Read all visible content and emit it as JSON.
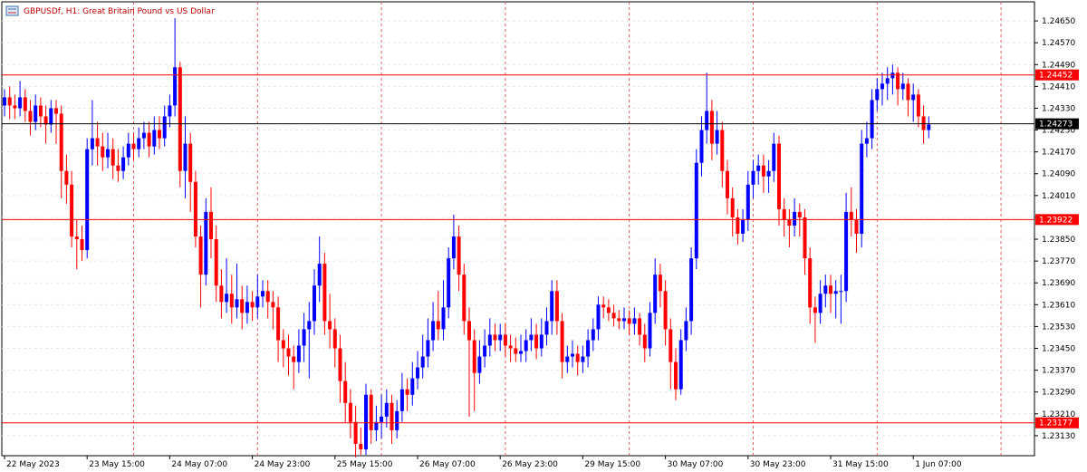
{
  "chart_data": {
    "type": "candlestick",
    "title": "GBPUSDf, H1:  Great Britain Pound vs US Dollar",
    "up_color": "#0000ff",
    "down_color": "#ff0000",
    "grid": true,
    "ylim": [
      1.2305,
      1.2471
    ],
    "yticks": [
      {
        "value": 1.2465,
        "label": "1.24650"
      },
      {
        "value": 1.2457,
        "label": "1.24570"
      },
      {
        "value": 1.2449,
        "label": "1.24490"
      },
      {
        "value": 1.2441,
        "label": "1.24410"
      },
      {
        "value": 1.2433,
        "label": "1.24330"
      },
      {
        "value": 1.2425,
        "label": "1.24250"
      },
      {
        "value": 1.2417,
        "label": "1.24170"
      },
      {
        "value": 1.2409,
        "label": "1.24090"
      },
      {
        "value": 1.2401,
        "label": "1.24010"
      },
      {
        "value": 1.2393,
        "label": "1.23930"
      },
      {
        "value": 1.2385,
        "label": "1.23850"
      },
      {
        "value": 1.2377,
        "label": "1.23770"
      },
      {
        "value": 1.2369,
        "label": "1.23690"
      },
      {
        "value": 1.2361,
        "label": "1.23610"
      },
      {
        "value": 1.2353,
        "label": "1.23530"
      },
      {
        "value": 1.2345,
        "label": "1.23450"
      },
      {
        "value": 1.2337,
        "label": "1.23370"
      },
      {
        "value": 1.2329,
        "label": "1.23290"
      },
      {
        "value": 1.2321,
        "label": "1.23210"
      },
      {
        "value": 1.2313,
        "label": "1.23130"
      }
    ],
    "levels": [
      {
        "value": 1.24452,
        "color": "#ff0000"
      },
      {
        "value": 1.24273,
        "color": "#000000"
      },
      {
        "value": 1.23922,
        "color": "#ff0000"
      },
      {
        "value": 1.23177,
        "color": "#ff0000"
      }
    ],
    "categories": [
      "22 May 2023",
      null,
      null,
      null,
      null,
      null,
      null,
      null,
      null,
      null,
      null,
      null,
      null,
      null,
      null,
      null,
      "23 May 15:00",
      null,
      null,
      null,
      null,
      null,
      null,
      null,
      null,
      null,
      null,
      null,
      null,
      null,
      null,
      null,
      "24 May 07:00",
      null,
      null,
      null,
      null,
      null,
      null,
      null,
      null,
      null,
      null,
      null,
      null,
      null,
      null,
      null,
      "24 May 23:00",
      null,
      null,
      null,
      null,
      null,
      null,
      null,
      null,
      null,
      null,
      null,
      null,
      null,
      null,
      null,
      "25 May 15:00",
      null,
      null,
      null,
      null,
      null,
      null,
      null,
      null,
      null,
      null,
      null,
      null,
      null,
      null,
      null,
      "26 May 07:00",
      null,
      null,
      null,
      null,
      null,
      null,
      null,
      null,
      null,
      null,
      null,
      null,
      null,
      null,
      null,
      "26 May 23:00",
      null,
      null,
      null,
      null,
      null,
      null,
      null,
      null,
      null,
      null,
      null,
      null,
      null,
      null,
      null,
      "29 May 15:00",
      null,
      null,
      null,
      null,
      null,
      null,
      null,
      null,
      null,
      null,
      null,
      null,
      null,
      null,
      null,
      "30 May 07:00",
      null,
      null,
      null,
      null,
      null,
      null,
      null,
      null,
      null,
      null,
      null,
      null,
      null,
      null,
      null,
      "30 May 23:00",
      null,
      null,
      null,
      null,
      null,
      null,
      null,
      null,
      null,
      null,
      null,
      null,
      null,
      null,
      null,
      "31 May 15:00",
      null,
      null,
      null,
      null,
      null,
      null,
      null,
      null,
      null,
      null,
      null,
      null,
      null,
      null,
      null,
      "1 Jun 07:00",
      null,
      null,
      null
    ],
    "ohlc": [
      [
        1.2434,
        1.244,
        1.243,
        1.2437
      ],
      [
        1.2437,
        1.2441,
        1.2429,
        1.2434
      ],
      [
        1.2434,
        1.2438,
        1.2429,
        1.2433
      ],
      [
        1.2433,
        1.2443,
        1.243,
        1.2437
      ],
      [
        1.2437,
        1.244,
        1.2428,
        1.2432
      ],
      [
        1.2432,
        1.2436,
        1.2423,
        1.2428
      ],
      [
        1.2428,
        1.2438,
        1.2425,
        1.2434
      ],
      [
        1.2434,
        1.2437,
        1.2426,
        1.243
      ],
      [
        1.243,
        1.2434,
        1.242,
        1.2427
      ],
      [
        1.2427,
        1.2436,
        1.2424,
        1.2433
      ],
      [
        1.2433,
        1.2436,
        1.242,
        1.2431
      ],
      [
        1.2431,
        1.2434,
        1.24,
        1.241
      ],
      [
        1.241,
        1.2416,
        1.2398,
        1.2405
      ],
      [
        1.2405,
        1.241,
        1.2382,
        1.2386
      ],
      [
        1.2386,
        1.2392,
        1.2374,
        1.2385
      ],
      [
        1.2385,
        1.239,
        1.2377,
        1.2381
      ],
      [
        1.2381,
        1.2422,
        1.2378,
        1.2418
      ],
      [
        1.2418,
        1.2436,
        1.2412,
        1.2422
      ],
      [
        1.2422,
        1.2428,
        1.2412,
        1.2419
      ],
      [
        1.2419,
        1.2424,
        1.241,
        1.2415
      ],
      [
        1.2415,
        1.2424,
        1.2411,
        1.2418
      ],
      [
        1.2418,
        1.2422,
        1.2407,
        1.2412
      ],
      [
        1.2412,
        1.2418,
        1.2406,
        1.241
      ],
      [
        1.241,
        1.2419,
        1.2407,
        1.2415
      ],
      [
        1.2415,
        1.2424,
        1.2412,
        1.242
      ],
      [
        1.242,
        1.2424,
        1.2414,
        1.2418
      ],
      [
        1.2418,
        1.2426,
        1.2415,
        1.2422
      ],
      [
        1.2422,
        1.2428,
        1.2418,
        1.2424
      ],
      [
        1.2424,
        1.2428,
        1.2415,
        1.2419
      ],
      [
        1.2419,
        1.243,
        1.2416,
        1.2425
      ],
      [
        1.2425,
        1.243,
        1.2418,
        1.2422
      ],
      [
        1.2422,
        1.2434,
        1.2419,
        1.243
      ],
      [
        1.243,
        1.2438,
        1.2426,
        1.2434
      ],
      [
        1.2434,
        1.2466,
        1.243,
        1.2448
      ],
      [
        1.2448,
        1.245,
        1.2404,
        1.241
      ],
      [
        1.241,
        1.243,
        1.24,
        1.242
      ],
      [
        1.242,
        1.2424,
        1.2395,
        1.2406
      ],
      [
        1.2406,
        1.241,
        1.2382,
        1.2386
      ],
      [
        1.2386,
        1.239,
        1.236,
        1.2372
      ],
      [
        1.2372,
        1.24,
        1.2368,
        1.2395
      ],
      [
        1.2395,
        1.2404,
        1.2378,
        1.2385
      ],
      [
        1.2385,
        1.239,
        1.2362,
        1.2368
      ],
      [
        1.2368,
        1.2374,
        1.2356,
        1.2362
      ],
      [
        1.2362,
        1.2378,
        1.2358,
        1.2365
      ],
      [
        1.2365,
        1.2372,
        1.2354,
        1.236
      ],
      [
        1.236,
        1.2376,
        1.2356,
        1.2363
      ],
      [
        1.2363,
        1.2368,
        1.2352,
        1.2358
      ],
      [
        1.2358,
        1.2368,
        1.2354,
        1.2362
      ],
      [
        1.2362,
        1.2366,
        1.2355,
        1.236
      ],
      [
        1.236,
        1.2372,
        1.2356,
        1.2364
      ],
      [
        1.2364,
        1.237,
        1.236,
        1.2366
      ],
      [
        1.2366,
        1.237,
        1.2356,
        1.2362
      ],
      [
        1.2362,
        1.2366,
        1.2352,
        1.236
      ],
      [
        1.236,
        1.2364,
        1.234,
        1.2348
      ],
      [
        1.2348,
        1.2352,
        1.2338,
        1.2345
      ],
      [
        1.2345,
        1.235,
        1.2335,
        1.2342
      ],
      [
        1.2342,
        1.2346,
        1.233,
        1.234
      ],
      [
        1.234,
        1.2352,
        1.2336,
        1.2346
      ],
      [
        1.2346,
        1.2358,
        1.234,
        1.2352
      ],
      [
        1.2352,
        1.2362,
        1.2334,
        1.2355
      ],
      [
        1.2355,
        1.2374,
        1.235,
        1.2368
      ],
      [
        1.2368,
        1.2386,
        1.2362,
        1.2376
      ],
      [
        1.2376,
        1.238,
        1.235,
        1.2355
      ],
      [
        1.2355,
        1.2365,
        1.2345,
        1.2352
      ],
      [
        1.2352,
        1.2356,
        1.2338,
        1.2345
      ],
      [
        1.2345,
        1.235,
        1.2325,
        1.2333
      ],
      [
        1.2333,
        1.234,
        1.2318,
        1.2325
      ],
      [
        1.2325,
        1.233,
        1.2312,
        1.2318
      ],
      [
        1.2318,
        1.2324,
        1.2305,
        1.231
      ],
      [
        1.231,
        1.2316,
        1.2306,
        1.2308
      ],
      [
        1.2308,
        1.2332,
        1.2306,
        1.2328
      ],
      [
        1.2328,
        1.233,
        1.231,
        1.2315
      ],
      [
        1.2315,
        1.2324,
        1.2311,
        1.2318
      ],
      [
        1.2318,
        1.2328,
        1.2312,
        1.232
      ],
      [
        1.232,
        1.233,
        1.2316,
        1.2325
      ],
      [
        1.2325,
        1.2328,
        1.231,
        1.2315
      ],
      [
        1.2315,
        1.2326,
        1.2312,
        1.2322
      ],
      [
        1.2322,
        1.2336,
        1.2318,
        1.233
      ],
      [
        1.233,
        1.2334,
        1.2322,
        1.2328
      ],
      [
        1.2328,
        1.234,
        1.2324,
        1.2334
      ],
      [
        1.2334,
        1.2344,
        1.233,
        1.2338
      ],
      [
        1.2338,
        1.235,
        1.2334,
        1.2342
      ],
      [
        1.2342,
        1.2356,
        1.2338,
        1.2348
      ],
      [
        1.2348,
        1.2362,
        1.2344,
        1.2355
      ],
      [
        1.2355,
        1.2366,
        1.2348,
        1.2352
      ],
      [
        1.2352,
        1.237,
        1.2348,
        1.236
      ],
      [
        1.236,
        1.2382,
        1.2356,
        1.2378
      ],
      [
        1.2378,
        1.2394,
        1.2374,
        1.2386
      ],
      [
        1.2386,
        1.239,
        1.2366,
        1.2372
      ],
      [
        1.2372,
        1.2376,
        1.235,
        1.2355
      ],
      [
        1.2355,
        1.236,
        1.232,
        1.2348
      ],
      [
        1.2348,
        1.2352,
        1.2322,
        1.2336
      ],
      [
        1.2336,
        1.2348,
        1.2332,
        1.2342
      ],
      [
        1.2342,
        1.2352,
        1.2338,
        1.2346
      ],
      [
        1.2346,
        1.2356,
        1.2342,
        1.235
      ],
      [
        1.235,
        1.2354,
        1.2344,
        1.2348
      ],
      [
        1.2348,
        1.2354,
        1.2344,
        1.235
      ],
      [
        1.235,
        1.2354,
        1.2342,
        1.2346
      ],
      [
        1.2346,
        1.235,
        1.234,
        1.2345
      ],
      [
        1.2345,
        1.2349,
        1.234,
        1.2343
      ],
      [
        1.2343,
        1.235,
        1.234,
        1.2344
      ],
      [
        1.2344,
        1.2352,
        1.234,
        1.2348
      ],
      [
        1.2348,
        1.2356,
        1.2344,
        1.235
      ],
      [
        1.235,
        1.2354,
        1.2341,
        1.2345
      ],
      [
        1.2345,
        1.2356,
        1.2342,
        1.235
      ],
      [
        1.235,
        1.236,
        1.2346,
        1.2355
      ],
      [
        1.2355,
        1.237,
        1.235,
        1.2366
      ],
      [
        1.2366,
        1.237,
        1.235,
        1.2355
      ],
      [
        1.2355,
        1.2358,
        1.2334,
        1.234
      ],
      [
        1.234,
        1.2346,
        1.2336,
        1.2342
      ],
      [
        1.2342,
        1.2348,
        1.2338,
        1.2343
      ],
      [
        1.2343,
        1.2346,
        1.2335,
        1.234
      ],
      [
        1.234,
        1.2346,
        1.2336,
        1.2342
      ],
      [
        1.2342,
        1.2352,
        1.2338,
        1.2348
      ],
      [
        1.2348,
        1.2356,
        1.2344,
        1.2352
      ],
      [
        1.2352,
        1.2364,
        1.2348,
        1.2361
      ],
      [
        1.2361,
        1.2364,
        1.2356,
        1.236
      ],
      [
        1.236,
        1.2363,
        1.2355,
        1.2358
      ],
      [
        1.2358,
        1.2361,
        1.2353,
        1.2356
      ],
      [
        1.2356,
        1.2359,
        1.2352,
        1.2355
      ],
      [
        1.2355,
        1.236,
        1.2352,
        1.2356
      ],
      [
        1.2356,
        1.2359,
        1.235,
        1.2354
      ],
      [
        1.2354,
        1.236,
        1.235,
        1.2356
      ],
      [
        1.2356,
        1.2358,
        1.2346,
        1.235
      ],
      [
        1.235,
        1.2354,
        1.234,
        1.2345
      ],
      [
        1.2345,
        1.2362,
        1.2342,
        1.2358
      ],
      [
        1.2358,
        1.2378,
        1.2354,
        1.2372
      ],
      [
        1.2372,
        1.2376,
        1.236,
        1.2366
      ],
      [
        1.2366,
        1.237,
        1.2346,
        1.2352
      ],
      [
        1.2352,
        1.2356,
        1.233,
        1.234
      ],
      [
        1.234,
        1.2345,
        1.2326,
        1.233
      ],
      [
        1.233,
        1.2352,
        1.2328,
        1.2348
      ],
      [
        1.2348,
        1.236,
        1.2344,
        1.2355
      ],
      [
        1.2355,
        1.2382,
        1.235,
        1.2378
      ],
      [
        1.2378,
        1.2418,
        1.2374,
        1.2413
      ],
      [
        1.2413,
        1.243,
        1.2408,
        1.2425
      ],
      [
        1.2425,
        1.2446,
        1.242,
        1.2432
      ],
      [
        1.2432,
        1.2436,
        1.2414,
        1.242
      ],
      [
        1.242,
        1.2432,
        1.2416,
        1.2425
      ],
      [
        1.2425,
        1.2428,
        1.2404,
        1.241
      ],
      [
        1.241,
        1.2414,
        1.2394,
        1.24
      ],
      [
        1.24,
        1.2404,
        1.2386,
        1.2393
      ],
      [
        1.2393,
        1.2396,
        1.2383,
        1.2387
      ],
      [
        1.2387,
        1.2396,
        1.2384,
        1.2392
      ],
      [
        1.2392,
        1.241,
        1.2388,
        1.2405
      ],
      [
        1.2405,
        1.2414,
        1.24,
        1.241
      ],
      [
        1.241,
        1.2416,
        1.2405,
        1.2412
      ],
      [
        1.2412,
        1.2416,
        1.2402,
        1.2408
      ],
      [
        1.2408,
        1.2414,
        1.2402,
        1.241
      ],
      [
        1.241,
        1.2424,
        1.2406,
        1.242
      ],
      [
        1.242,
        1.2423,
        1.239,
        1.2396
      ],
      [
        1.2396,
        1.24,
        1.2386,
        1.2392
      ],
      [
        1.2392,
        1.2396,
        1.2382,
        1.239
      ],
      [
        1.239,
        1.24,
        1.2386,
        1.2395
      ],
      [
        1.2395,
        1.2398,
        1.2386,
        1.2393
      ],
      [
        1.2393,
        1.2396,
        1.2372,
        1.2378
      ],
      [
        1.2378,
        1.2382,
        1.2354,
        1.236
      ],
      [
        1.236,
        1.2364,
        1.2347,
        1.2358
      ],
      [
        1.2358,
        1.237,
        1.2354,
        1.2365
      ],
      [
        1.2365,
        1.2372,
        1.236,
        1.2368
      ],
      [
        1.2368,
        1.2372,
        1.2358,
        1.2365
      ],
      [
        1.2365,
        1.237,
        1.2356,
        1.2366
      ],
      [
        1.2366,
        1.2372,
        1.2354,
        1.2366
      ],
      [
        1.2366,
        1.2402,
        1.2362,
        1.2395
      ],
      [
        1.2395,
        1.2404,
        1.2386,
        1.2392
      ],
      [
        1.2392,
        1.2396,
        1.238,
        1.2387
      ],
      [
        1.2387,
        1.2425,
        1.2382,
        1.242
      ],
      [
        1.242,
        1.2428,
        1.2415,
        1.2422
      ],
      [
        1.2422,
        1.244,
        1.2418,
        1.2436
      ],
      [
        1.2436,
        1.2444,
        1.2432,
        1.244
      ],
      [
        1.244,
        1.2446,
        1.2434,
        1.2442
      ],
      [
        1.2442,
        1.2448,
        1.2436,
        1.2444
      ],
      [
        1.2444,
        1.2449,
        1.2438,
        1.2446
      ],
      [
        1.2446,
        1.2448,
        1.2434,
        1.244
      ],
      [
        1.244,
        1.2446,
        1.2436,
        1.2442
      ],
      [
        1.2442,
        1.2444,
        1.243,
        1.2436
      ],
      [
        1.2436,
        1.2442,
        1.2428,
        1.2438
      ],
      [
        1.2438,
        1.244,
        1.2426,
        1.243
      ],
      [
        1.243,
        1.2434,
        1.242,
        1.2425
      ],
      [
        1.2425,
        1.243,
        1.2422,
        1.2427
      ]
    ]
  }
}
